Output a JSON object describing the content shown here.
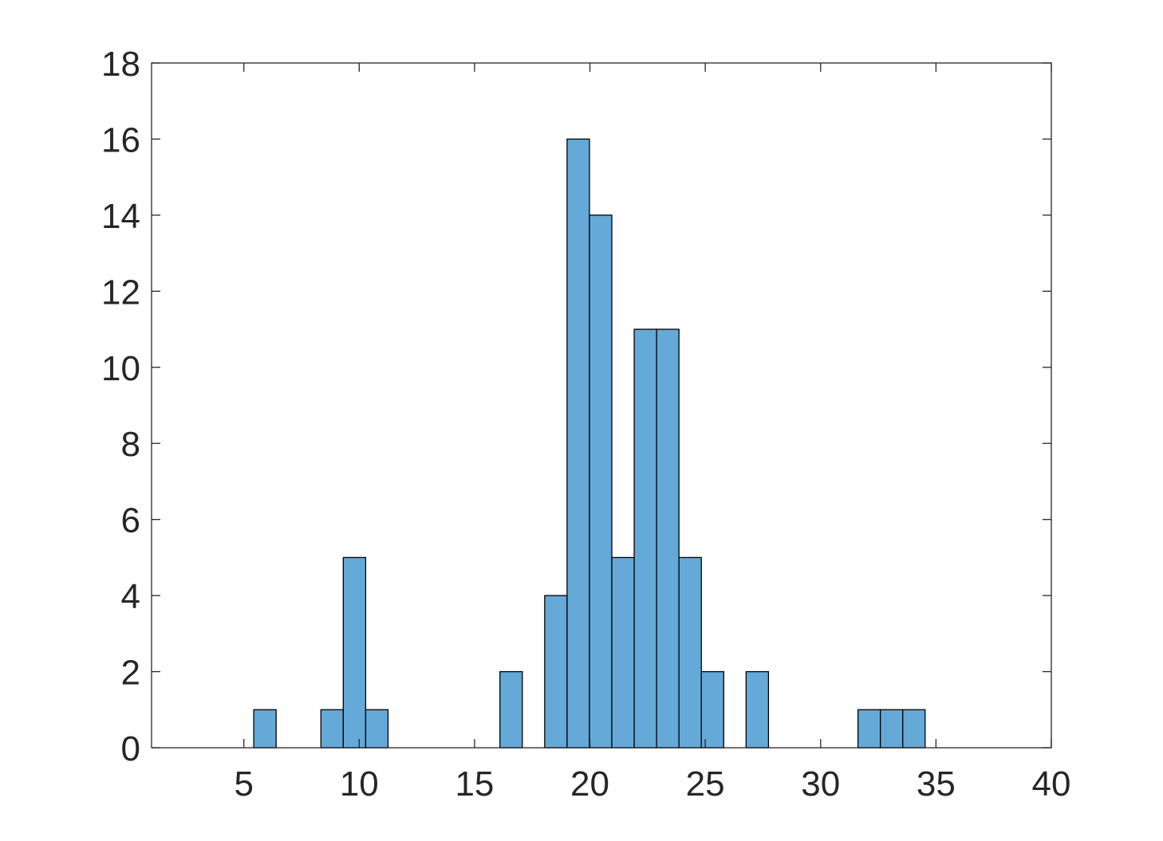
{
  "chart_data": {
    "type": "bar",
    "title": "",
    "xlabel": "",
    "ylabel": "",
    "xlim": [
      1,
      40
    ],
    "ylim": [
      0,
      18
    ],
    "x_ticks": [
      5,
      10,
      15,
      20,
      25,
      30,
      35,
      40
    ],
    "y_ticks": [
      0,
      2,
      4,
      6,
      8,
      10,
      12,
      14,
      16,
      18
    ],
    "grid": false,
    "bin_width": 0.97,
    "bar_color": "#64a9d8",
    "bars": [
      {
        "x0": 5.43,
        "value": 1
      },
      {
        "x0": 8.34,
        "value": 1
      },
      {
        "x0": 9.31,
        "value": 5
      },
      {
        "x0": 10.28,
        "value": 1
      },
      {
        "x0": 16.1,
        "value": 2
      },
      {
        "x0": 18.04,
        "value": 4
      },
      {
        "x0": 19.01,
        "value": 16
      },
      {
        "x0": 19.98,
        "value": 14
      },
      {
        "x0": 20.95,
        "value": 5
      },
      {
        "x0": 21.92,
        "value": 11
      },
      {
        "x0": 22.89,
        "value": 11
      },
      {
        "x0": 23.86,
        "value": 5
      },
      {
        "x0": 24.83,
        "value": 2
      },
      {
        "x0": 26.77,
        "value": 2
      },
      {
        "x0": 31.62,
        "value": 1
      },
      {
        "x0": 32.59,
        "value": 1
      },
      {
        "x0": 33.56,
        "value": 1
      }
    ]
  }
}
